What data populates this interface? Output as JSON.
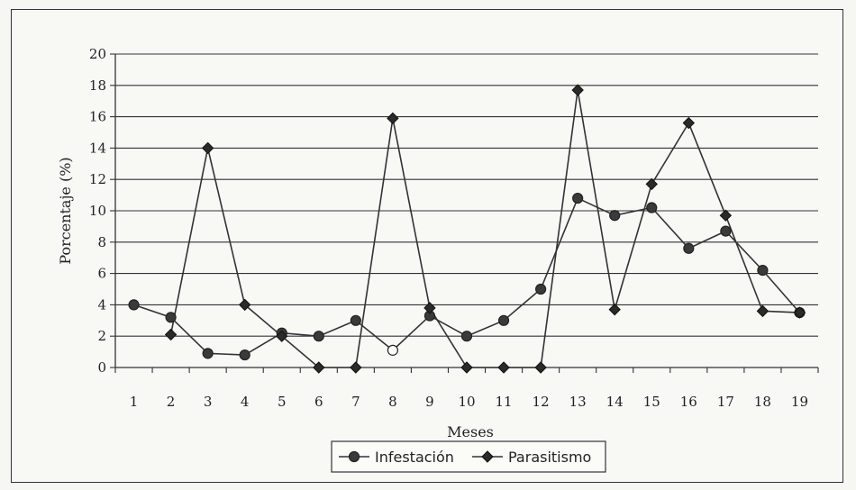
{
  "chart_data": {
    "type": "line",
    "xlabel": "Meses",
    "ylabel": "Porcentaje (%)",
    "ylim": [
      0,
      20
    ],
    "yticks": [
      0,
      2,
      4,
      6,
      8,
      10,
      12,
      14,
      16,
      18,
      20
    ],
    "categories": [
      "1",
      "2",
      "3",
      "4",
      "5",
      "6",
      "7",
      "8",
      "9",
      "10",
      "11",
      "12",
      "13",
      "14",
      "15",
      "16",
      "17",
      "18",
      "19"
    ],
    "grid": "horizontal",
    "legend_position": "bottom",
    "series": [
      {
        "name": "Infestación",
        "marker": "circle",
        "color": "#333333",
        "values": [
          4.0,
          3.2,
          0.9,
          0.8,
          2.2,
          2.0,
          3.0,
          1.1,
          3.3,
          2.0,
          3.0,
          5.0,
          10.8,
          9.7,
          10.2,
          7.6,
          8.7,
          6.2,
          3.5
        ]
      },
      {
        "name": "Parasitismo",
        "marker": "diamond",
        "color": "#333333",
        "values": [
          null,
          2.1,
          14.0,
          4.0,
          2.0,
          0.0,
          0.0,
          15.9,
          3.8,
          0.0,
          0.0,
          0.0,
          17.7,
          3.7,
          11.7,
          15.6,
          9.7,
          3.6,
          3.5
        ]
      }
    ]
  }
}
